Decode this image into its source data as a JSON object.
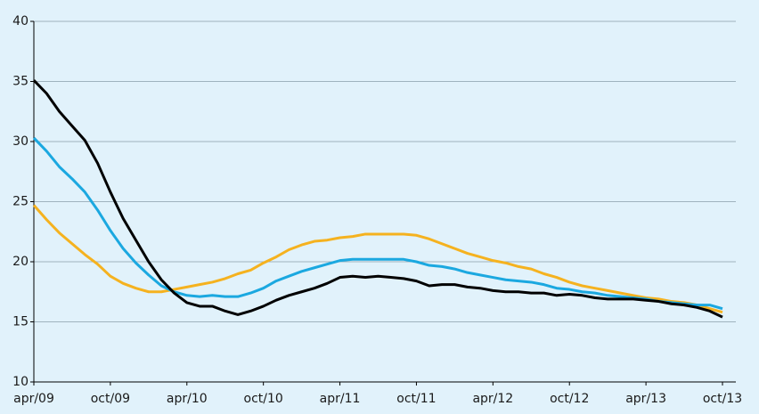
{
  "chart_data": {
    "type": "line",
    "categories": [
      "apr/09",
      null,
      null,
      null,
      null,
      null,
      "oct/09",
      null,
      null,
      null,
      null,
      null,
      "apr/10",
      null,
      null,
      null,
      null,
      null,
      "oct/10",
      null,
      null,
      null,
      null,
      null,
      "apr/11",
      null,
      null,
      null,
      null,
      null,
      "oct/11",
      null,
      null,
      null,
      null,
      null,
      "apr/12",
      null,
      null,
      null,
      null,
      null,
      "oct/12",
      null,
      null,
      null,
      null,
      null,
      "apr/13",
      null,
      null,
      null,
      null,
      null,
      "oct/13"
    ],
    "series": [
      {
        "color": "#f5b21f",
        "values": [
          24.7,
          23.5,
          22.4,
          21.5,
          20.6,
          19.8,
          18.8,
          18.2,
          17.8,
          17.5,
          17.5,
          17.7,
          17.9,
          18.1,
          18.3,
          18.6,
          19.0,
          19.3,
          19.9,
          20.4,
          21.0,
          21.4,
          21.7,
          21.8,
          22.0,
          22.1,
          22.3,
          22.3,
          22.3,
          22.3,
          22.2,
          21.9,
          21.5,
          21.1,
          20.7,
          20.4,
          20.1,
          19.9,
          19.6,
          19.4,
          19.0,
          18.7,
          18.3,
          18.0,
          17.8,
          17.6,
          17.4,
          17.2,
          17.0,
          16.9,
          16.7,
          16.6,
          16.4,
          16.1,
          15.8
        ]
      },
      {
        "color": "#1ba8e0",
        "values": [
          30.3,
          29.2,
          27.9,
          26.9,
          25.8,
          24.3,
          22.6,
          21.1,
          19.9,
          18.9,
          18.0,
          17.5,
          17.2,
          17.1,
          17.2,
          17.1,
          17.1,
          17.4,
          17.8,
          18.4,
          18.8,
          19.2,
          19.5,
          19.8,
          20.1,
          20.2,
          20.2,
          20.2,
          20.2,
          20.2,
          20.0,
          19.7,
          19.6,
          19.4,
          19.1,
          18.9,
          18.7,
          18.5,
          18.4,
          18.3,
          18.1,
          17.8,
          17.7,
          17.5,
          17.4,
          17.2,
          17.1,
          17.0,
          16.9,
          16.7,
          16.6,
          16.5,
          16.4,
          16.4,
          16.1
        ]
      },
      {
        "color": "#000000",
        "values": [
          35.1,
          34.0,
          32.5,
          31.3,
          30.1,
          28.2,
          25.8,
          23.6,
          21.8,
          20.0,
          18.5,
          17.4,
          16.6,
          16.3,
          16.3,
          15.9,
          15.6,
          15.9,
          16.3,
          16.8,
          17.2,
          17.5,
          17.8,
          18.2,
          18.7,
          18.8,
          18.7,
          18.8,
          18.7,
          18.6,
          18.4,
          18.0,
          18.1,
          18.1,
          17.9,
          17.8,
          17.6,
          17.5,
          17.5,
          17.4,
          17.4,
          17.2,
          17.3,
          17.2,
          17.0,
          16.9,
          16.9,
          16.9,
          16.8,
          16.7,
          16.5,
          16.4,
          16.2,
          15.9,
          15.4
        ]
      }
    ],
    "ylim": [
      10,
      40
    ],
    "yticks": [
      10,
      15,
      20,
      25,
      30,
      35,
      40
    ],
    "grid": true
  }
}
